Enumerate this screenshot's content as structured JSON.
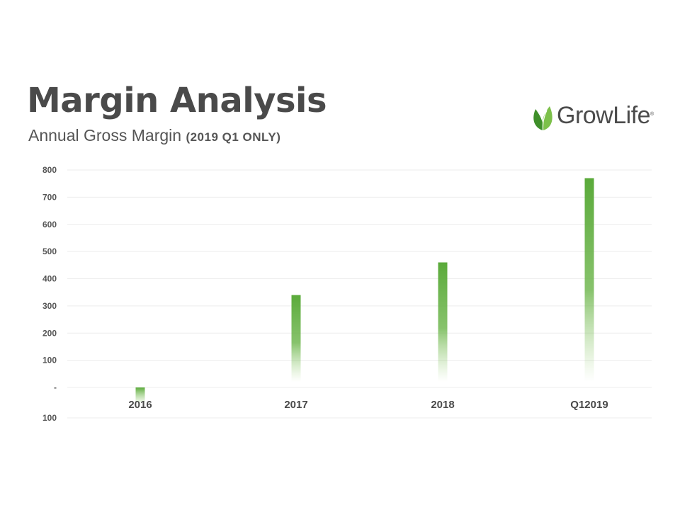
{
  "header": {
    "title": "Margin Analysis",
    "subtitle_main": "Annual Gross Margin ",
    "subtitle_paren": "(2019 Q1 ONLY)"
  },
  "logo": {
    "text": "GrowLife",
    "reg_mark": "®",
    "icon": "leaf-icon"
  },
  "colors": {
    "bar": "#5aaa3a",
    "leaf_dark": "#3f8f2a",
    "leaf_light": "#7cc04a",
    "text": "#4a4a4a",
    "grid": "#ececec"
  },
  "chart_data": {
    "type": "bar",
    "categories": [
      "2016",
      "2017",
      "2018",
      "Q12019"
    ],
    "values": [
      -25,
      340,
      460,
      770
    ],
    "ylim": [
      -100,
      800
    ],
    "yticks": [
      {
        "value": 800,
        "label": "800"
      },
      {
        "value": 700,
        "label": "700"
      },
      {
        "value": 600,
        "label": "600"
      },
      {
        "value": 500,
        "label": "500"
      },
      {
        "value": 400,
        "label": "400"
      },
      {
        "value": 300,
        "label": "300"
      },
      {
        "value": 200,
        "label": "200"
      },
      {
        "value": 100,
        "label": "100"
      },
      {
        "value": 0,
        "label": "-"
      },
      {
        "value": -100,
        "label": "100"
      }
    ],
    "grid": true,
    "legend": "none",
    "bar_style": "vertical gradient fading toward baseline"
  }
}
